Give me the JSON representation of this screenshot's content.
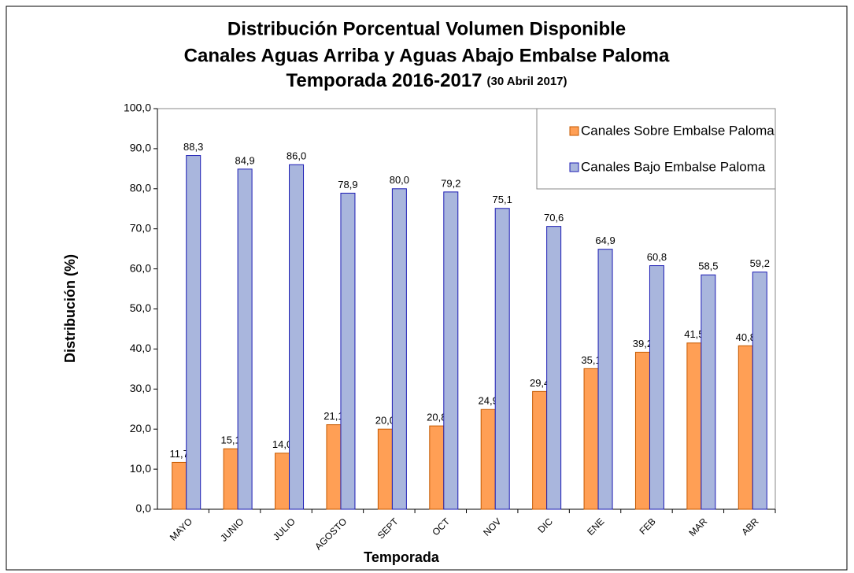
{
  "chart_data": {
    "type": "bar",
    "title": [
      "Distribución Porcentual Volumen Disponible",
      "Canales Aguas Arriba y Aguas Abajo Embalse Paloma",
      "Temporada 2016-2017"
    ],
    "subtitle": "(30 Abril 2017)",
    "x_label": "Temporada",
    "y_label": "Distribución (%)",
    "categories": [
      "MAYO",
      "JUNIO",
      "JULIO",
      "AGOSTO",
      "SEPT",
      "OCT",
      "NOV",
      "DIC",
      "ENE",
      "FEB",
      "MAR",
      "ABR"
    ],
    "series": [
      {
        "name": "Canales Sobre Embalse Paloma",
        "color": "#ff9f55",
        "edge": "#c65a00",
        "values": [
          11.7,
          15.1,
          14.0,
          21.1,
          20.0,
          20.8,
          24.9,
          29.4,
          35.1,
          39.2,
          41.5,
          40.8
        ],
        "value_labels": [
          "11,7",
          "15,1",
          "14,0",
          "21,1",
          "20,0",
          "20,8",
          "24,9",
          "29,4",
          "35,1",
          "39,2",
          "41,5",
          "40,8"
        ]
      },
      {
        "name": "Canales Bajo Embalse Paloma",
        "color": "#a9b6dd",
        "edge": "#1c1cb4",
        "values": [
          88.3,
          84.9,
          86.0,
          78.9,
          80.0,
          79.2,
          75.1,
          70.6,
          64.9,
          60.8,
          58.5,
          59.2
        ],
        "value_labels": [
          "88,3",
          "84,9",
          "86,0",
          "78,9",
          "80,0",
          "79,2",
          "75,1",
          "70,6",
          "64,9",
          "60,8",
          "58,5",
          "59,2"
        ]
      }
    ],
    "ylim": [
      0,
      100
    ],
    "yticks": [
      {
        "value": 0,
        "label": "0,0"
      },
      {
        "value": 10,
        "label": "10,0"
      },
      {
        "value": 20,
        "label": "20,0"
      },
      {
        "value": 30,
        "label": "30,0"
      },
      {
        "value": 40,
        "label": "40,0"
      },
      {
        "value": 50,
        "label": "50,0"
      },
      {
        "value": 60,
        "label": "60,0"
      },
      {
        "value": 70,
        "label": "70,0"
      },
      {
        "value": 80,
        "label": "80,0"
      },
      {
        "value": 90,
        "label": "90,0"
      },
      {
        "value": 100,
        "label": "100,0"
      }
    ],
    "grid": false,
    "legend": "upper right"
  }
}
